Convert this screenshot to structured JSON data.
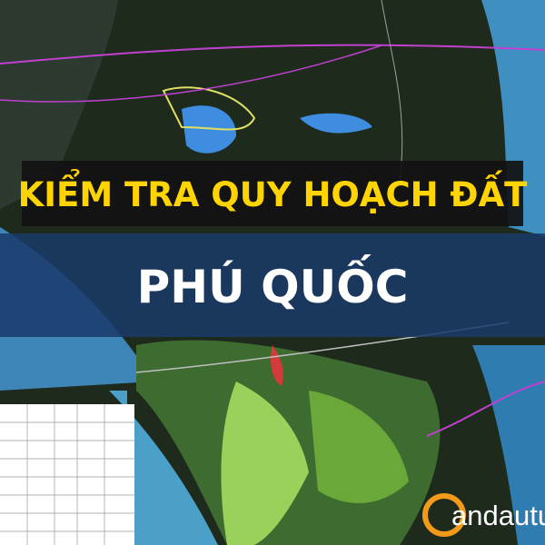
{
  "banner": {
    "title": "KIỂM TRA QUY HOẠCH ĐẤT",
    "subtitle": "PHÚ QUỐC"
  },
  "logo": {
    "text": "andautu."
  }
}
